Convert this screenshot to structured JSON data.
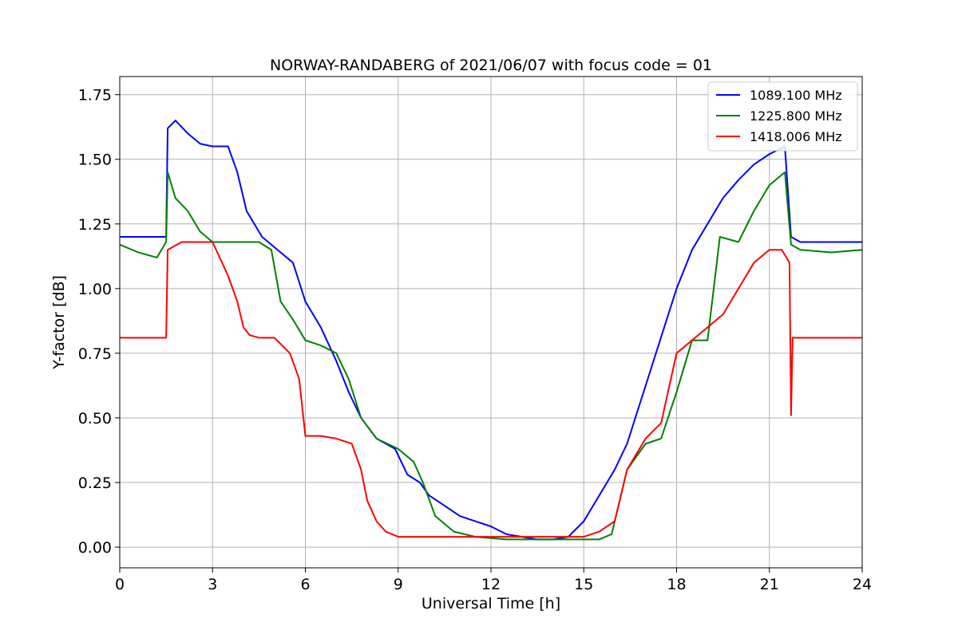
{
  "chart_data": {
    "type": "line",
    "title": "NORWAY-RANDABERG of 2021/06/07 with focus code = 01",
    "xlabel": "Universal Time [h]",
    "ylabel": "Y-factor [dB]",
    "xlim": [
      0,
      24
    ],
    "ylim": [
      -0.08,
      1.82
    ],
    "xticks": [
      0,
      3,
      6,
      9,
      12,
      15,
      18,
      21,
      24
    ],
    "xtick_labels": [
      "0",
      "3",
      "6",
      "9",
      "12",
      "15",
      "18",
      "21",
      "24"
    ],
    "yticks": [
      0.0,
      0.25,
      0.5,
      0.75,
      1.0,
      1.25,
      1.5,
      1.75
    ],
    "ytick_labels": [
      "0.00",
      "0.25",
      "0.50",
      "0.75",
      "1.00",
      "1.25",
      "1.50",
      "1.75"
    ],
    "grid": true,
    "legend_position": "top-right",
    "series": [
      {
        "name": "1089.100 MHz",
        "color": "#0000ff",
        "x": [
          0,
          1.5,
          1.55,
          1.8,
          2.2,
          2.6,
          3.0,
          3.5,
          3.8,
          4.1,
          4.6,
          5.1,
          5.6,
          6.0,
          6.5,
          7.0,
          7.4,
          7.8,
          8.3,
          8.9,
          9.3,
          9.7,
          10.0,
          10.5,
          11.0,
          11.5,
          12.0,
          12.5,
          13.0,
          13.5,
          14.0,
          14.5,
          15.0,
          15.5,
          16.0,
          16.4,
          16.8,
          17.2,
          17.6,
          18.0,
          18.5,
          19.0,
          19.5,
          20.0,
          20.5,
          21.0,
          21.5,
          21.7,
          22.0,
          23.0,
          24.0
        ],
        "y": [
          1.2,
          1.2,
          1.62,
          1.65,
          1.6,
          1.56,
          1.55,
          1.55,
          1.45,
          1.3,
          1.2,
          1.15,
          1.1,
          0.95,
          0.85,
          0.72,
          0.6,
          0.5,
          0.42,
          0.38,
          0.28,
          0.25,
          0.2,
          0.16,
          0.12,
          0.1,
          0.08,
          0.05,
          0.04,
          0.03,
          0.03,
          0.04,
          0.1,
          0.2,
          0.3,
          0.4,
          0.55,
          0.7,
          0.85,
          1.0,
          1.15,
          1.25,
          1.35,
          1.42,
          1.48,
          1.52,
          1.55,
          1.2,
          1.18,
          1.18,
          1.18
        ]
      },
      {
        "name": "1225.800 MHz",
        "color": "#008000",
        "x": [
          0,
          0.6,
          1.2,
          1.5,
          1.55,
          1.8,
          2.2,
          2.6,
          3.0,
          3.5,
          4.0,
          4.5,
          4.9,
          5.2,
          5.6,
          6.0,
          6.5,
          7.0,
          7.4,
          7.8,
          8.3,
          9.0,
          9.5,
          9.8,
          10.2,
          10.8,
          11.5,
          12.5,
          13.5,
          14.5,
          15.5,
          15.9,
          16.4,
          17.0,
          17.5,
          18.0,
          18.5,
          19.0,
          19.4,
          20.0,
          20.5,
          21.0,
          21.5,
          21.7,
          22.0,
          23.0,
          24.0
        ],
        "y": [
          1.17,
          1.14,
          1.12,
          1.18,
          1.45,
          1.35,
          1.3,
          1.22,
          1.18,
          1.18,
          1.18,
          1.18,
          1.15,
          0.95,
          0.88,
          0.8,
          0.78,
          0.75,
          0.65,
          0.5,
          0.42,
          0.38,
          0.33,
          0.25,
          0.12,
          0.06,
          0.04,
          0.03,
          0.03,
          0.03,
          0.03,
          0.05,
          0.3,
          0.4,
          0.42,
          0.6,
          0.8,
          0.8,
          1.2,
          1.18,
          1.3,
          1.4,
          1.45,
          1.17,
          1.15,
          1.14,
          1.15
        ]
      },
      {
        "name": "1418.006 MHz",
        "color": "#ff0000",
        "x": [
          0,
          0.8,
          1.5,
          1.55,
          2.0,
          2.5,
          3.0,
          3.5,
          3.8,
          4.0,
          4.2,
          4.5,
          5.0,
          5.5,
          5.8,
          6.0,
          6.5,
          7.0,
          7.5,
          7.8,
          8.0,
          8.3,
          8.6,
          9.0,
          10.0,
          11.0,
          12.0,
          13.0,
          14.0,
          15.0,
          15.5,
          16.0,
          16.4,
          17.0,
          17.5,
          18.0,
          18.5,
          19.0,
          19.5,
          20.0,
          20.5,
          21.0,
          21.4,
          21.65,
          21.7,
          21.75,
          22.0,
          23.0,
          24.0
        ],
        "y": [
          0.81,
          0.81,
          0.81,
          1.15,
          1.18,
          1.18,
          1.18,
          1.05,
          0.95,
          0.85,
          0.82,
          0.81,
          0.81,
          0.75,
          0.65,
          0.43,
          0.43,
          0.42,
          0.4,
          0.3,
          0.18,
          0.1,
          0.06,
          0.04,
          0.04,
          0.04,
          0.04,
          0.04,
          0.04,
          0.04,
          0.06,
          0.1,
          0.3,
          0.42,
          0.48,
          0.75,
          0.8,
          0.85,
          0.9,
          1.0,
          1.1,
          1.15,
          1.15,
          1.1,
          0.51,
          0.81,
          0.81,
          0.81,
          0.81
        ]
      }
    ]
  }
}
